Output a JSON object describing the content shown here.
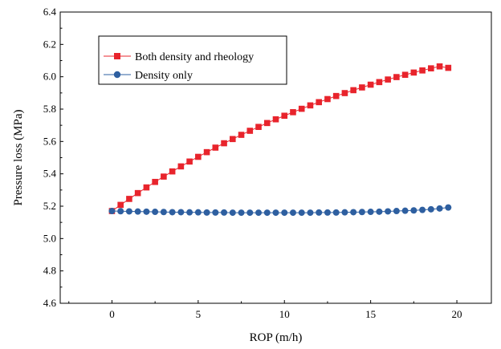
{
  "chart_data": {
    "type": "line",
    "title": "",
    "xlabel": "ROP (m/h)",
    "ylabel": "Pressure loss (MPa)",
    "xlim": [
      -3,
      22
    ],
    "ylim": [
      4.6,
      6.4
    ],
    "x_ticks": [
      0,
      5,
      10,
      15,
      20
    ],
    "y_ticks": [
      4.6,
      4.8,
      5.0,
      5.2,
      5.4,
      5.6,
      5.8,
      6.0,
      6.2,
      6.4
    ],
    "x_tick_labels": [
      "0",
      "5",
      "10",
      "15",
      "20"
    ],
    "y_tick_labels": [
      "4.6",
      "4.8",
      "5.0",
      "5.2",
      "5.4",
      "5.6",
      "5.8",
      "6.0",
      "6.2",
      "6.4"
    ],
    "grid": false,
    "legend_position": "top-left",
    "x": [
      0,
      0.5,
      1,
      1.5,
      2,
      2.5,
      3,
      3.5,
      4,
      4.5,
      5,
      5.5,
      6,
      6.5,
      7,
      7.5,
      8,
      8.5,
      9,
      9.5,
      10,
      10.5,
      11,
      11.5,
      12,
      12.5,
      13,
      13.5,
      14,
      14.5,
      15,
      15.5,
      16,
      16.5,
      17,
      17.5,
      18,
      18.5,
      19,
      19.5
    ],
    "series": [
      {
        "name": "Both density and rheology",
        "color": "#e8242c",
        "marker": "square",
        "values": [
          5.17,
          5.208,
          5.245,
          5.281,
          5.316,
          5.35,
          5.383,
          5.415,
          5.446,
          5.476,
          5.505,
          5.534,
          5.562,
          5.589,
          5.615,
          5.641,
          5.666,
          5.69,
          5.714,
          5.737,
          5.759,
          5.781,
          5.802,
          5.823,
          5.843,
          5.862,
          5.881,
          5.899,
          5.917,
          5.934,
          5.951,
          5.967,
          5.983,
          5.998,
          6.012,
          6.026,
          6.039,
          6.052,
          6.064,
          6.055
        ]
      },
      {
        "name": "Density only",
        "color": "#2e5fa0",
        "marker": "circle",
        "values": [
          5.17,
          5.169,
          5.168,
          5.167,
          5.166,
          5.165,
          5.164,
          5.163,
          5.163,
          5.162,
          5.162,
          5.161,
          5.161,
          5.161,
          5.16,
          5.16,
          5.16,
          5.16,
          5.16,
          5.16,
          5.16,
          5.16,
          5.16,
          5.16,
          5.161,
          5.161,
          5.161,
          5.162,
          5.163,
          5.164,
          5.165,
          5.166,
          5.168,
          5.17,
          5.172,
          5.174,
          5.177,
          5.181,
          5.186,
          5.192
        ]
      }
    ]
  }
}
